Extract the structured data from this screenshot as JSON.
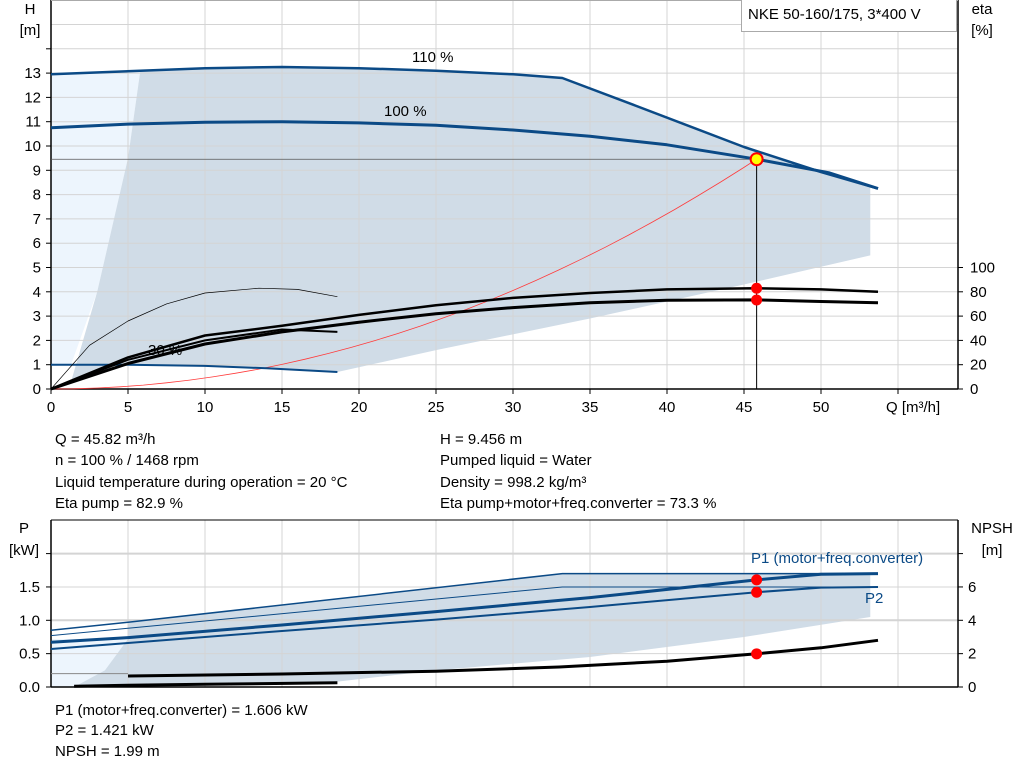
{
  "title": "NKE 50-160/175, 3*400 V",
  "colors": {
    "curve_blue": "#0b4a86",
    "shade": "#d0dce7",
    "shade_light": "#edf5fd",
    "system_red": "#ff3b3b",
    "point_red": "#ff0000",
    "point_yellow": "#ffff00"
  },
  "chart_data": [
    {
      "type": "line",
      "name": "head-efficiency",
      "xlabel": "Q [m³/h]",
      "ylabel_left": "H\n[m]",
      "ylabel_left_lines": [
        "H",
        "[m]"
      ],
      "ylabel_right_lines": [
        "eta",
        "[%]"
      ],
      "xlim": [
        0,
        59
      ],
      "ylim_left": [
        0,
        16
      ],
      "ylim_right_eta": [
        0,
        100
      ],
      "x_ticks": [
        0,
        5,
        10,
        15,
        20,
        25,
        30,
        35,
        40,
        45,
        50
      ],
      "y_ticks_left": [
        0,
        1,
        2,
        3,
        4,
        5,
        6,
        7,
        8,
        9,
        10,
        11,
        12,
        13
      ],
      "y_ticks_right": [
        0,
        20,
        40,
        60,
        80,
        100
      ],
      "grid": true,
      "curve_labels": [
        "110 %",
        "100 %",
        "30 %"
      ],
      "series": [
        {
          "name": "110 %",
          "axis": "H",
          "x": [
            0,
            5.8,
            10,
            15,
            20,
            25,
            30,
            33.2,
            37.8,
            45,
            50,
            53.7
          ],
          "y": [
            12.95,
            13.1,
            13.2,
            13.25,
            13.2,
            13.1,
            12.95,
            12.8,
            11.7,
            9.96,
            8.93,
            8.25
          ]
        },
        {
          "name": "100 %",
          "axis": "H",
          "x": [
            0,
            5,
            10,
            15,
            20,
            25,
            30,
            35,
            40,
            45.82,
            50.5,
            53.7
          ],
          "y": [
            10.75,
            10.9,
            10.98,
            11.0,
            10.95,
            10.85,
            10.66,
            10.4,
            10.05,
            9.456,
            8.9,
            8.25
          ]
        },
        {
          "axis": "H",
          "x": [
            0,
            5,
            10,
            14,
            18.6
          ],
          "y": [
            1.0,
            1.0,
            0.95,
            0.85,
            0.7
          ]
        },
        {
          "axis": "eta",
          "x": [
            0,
            5,
            10,
            15,
            20,
            25,
            30,
            35,
            40,
            45.82,
            50,
            53.7
          ],
          "y": [
            0,
            26,
            44,
            52,
            61,
            69,
            75,
            79,
            82,
            82.9,
            82,
            80
          ]
        },
        {
          "axis": "eta",
          "x": [
            0,
            5,
            10,
            15,
            20,
            25,
            30,
            35,
            40,
            45.82,
            50,
            53.7
          ],
          "y": [
            0,
            21,
            37,
            47,
            55,
            62,
            67,
            71,
            73,
            73.3,
            72,
            71
          ]
        },
        {
          "axis": "eta",
          "x": [
            0,
            2.5,
            5,
            7.5,
            10,
            13.5,
            16,
            18.6
          ],
          "y": [
            0,
            36,
            56,
            70,
            79,
            83,
            82,
            76
          ]
        },
        {
          "name": "30 %",
          "axis": "eta",
          "x": [
            0,
            5,
            10,
            15,
            18.6
          ],
          "y": [
            0,
            24,
            40,
            49,
            47
          ]
        }
      ],
      "operating_point": {
        "Q": 45.82,
        "H": 9.456,
        "eta_pump": 82.9,
        "eta_total": 73.3
      }
    },
    {
      "type": "line",
      "name": "power-npsh",
      "ylabel_left_lines": [
        "P",
        "[kW]"
      ],
      "ylabel_right_lines": [
        "NPSH",
        "[m]"
      ],
      "xlim": [
        0,
        59
      ],
      "ylim_left": [
        0,
        2.5
      ],
      "ylim_right": [
        0,
        10
      ],
      "y_ticks_left": [
        "0.0",
        "0.5",
        "1.0",
        "1.5"
      ],
      "y_ticks_right": [
        0,
        2,
        4,
        6
      ],
      "grid": true,
      "series": [
        {
          "name": "P1 (motor+freq.converter)",
          "axis": "P",
          "x": [
            0,
            5,
            15,
            25,
            35,
            45.82,
            50,
            53.7
          ],
          "y": [
            0.67,
            0.74,
            0.93,
            1.13,
            1.34,
            1.606,
            1.69,
            1.7
          ]
        },
        {
          "name": "P2",
          "axis": "P",
          "x": [
            0,
            5,
            15,
            25,
            35,
            45.82,
            50,
            53.7
          ],
          "y": [
            0.57,
            0.66,
            0.84,
            1.01,
            1.2,
            1.421,
            1.49,
            1.5
          ]
        },
        {
          "axis": "P",
          "x": [
            0,
            5,
            33.2,
            53.7
          ],
          "y": [
            0.85,
            0.97,
            1.7,
            1.7
          ]
        },
        {
          "axis": "P",
          "x": [
            0,
            5,
            33.2,
            53.7
          ],
          "y": [
            0.77,
            0.88,
            1.5,
            1.5
          ]
        },
        {
          "axis": "NPSH",
          "x": [
            5,
            15,
            25,
            33,
            40,
            45.82,
            50,
            53.7
          ],
          "y": [
            0.66,
            0.78,
            0.95,
            1.2,
            1.55,
            1.99,
            2.35,
            2.8
          ]
        },
        {
          "axis": "NPSH",
          "x": [
            1.5,
            5,
            10,
            18.6
          ],
          "y": [
            0.05,
            0.1,
            0.16,
            0.25
          ]
        }
      ],
      "operating_point": {
        "P1": 1.606,
        "P2": 1.421,
        "NPSH": 1.99
      }
    }
  ],
  "info_top": {
    "q": "Q = 45.82 m³/h",
    "n": "n = 100 % / 1468 rpm",
    "temp": "Liquid temperature during operation = 20 °C",
    "eta_pump": "Eta pump = 82.9 %",
    "h": "H = 9.456 m",
    "liquid": "Pumped liquid = Water",
    "density": "Density = 998.2 kg/m³",
    "eta_total": "Eta pump+motor+freq.converter = 73.3 %"
  },
  "info_bottom": {
    "p1": "P1 (motor+freq.converter) = 1.606 kW",
    "p2": "P2 = 1.421 kW",
    "npsh": "NPSH = 1.99 m"
  }
}
